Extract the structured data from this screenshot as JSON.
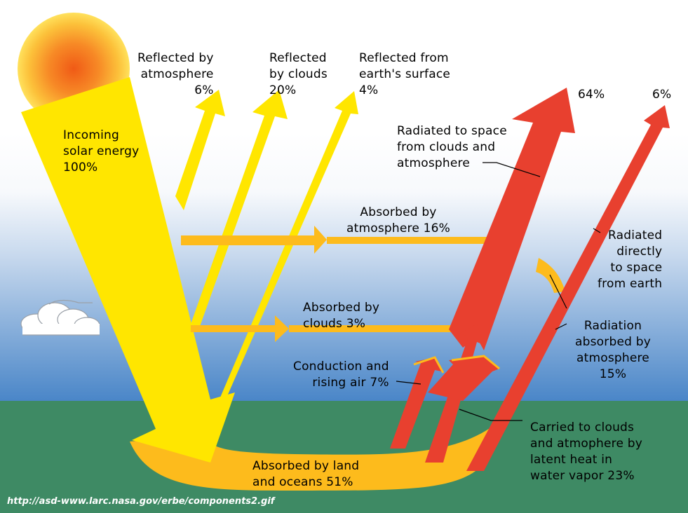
{
  "colors": {
    "sky_top": "#ffffff",
    "sky_bottom": "#4a86c8",
    "ground": "#3e8a64",
    "solar": "#ffe600",
    "absorbed": "#fdbb1c",
    "radiated": "#e8402f",
    "sun_core": "#f26a1a",
    "sun_edge": "#ffd54a"
  },
  "labels": {
    "incoming": "Incoming\nsolar energy\n100%",
    "reflected_atmosphere": "Reflected by\natmosphere\n6%",
    "reflected_clouds": "Reflected\nby clouds\n20%",
    "reflected_surface": "Reflected from\nearth's surface\n4%",
    "top_64": "64%",
    "top_6": "6%",
    "radiated_clouds": "Radiated to space\nfrom clouds and\natmosphere",
    "absorbed_atmosphere": "Absorbed by\natmosphere 16%",
    "radiated_directly": "Radiated\ndirectly\nto space\nfrom earth",
    "absorbed_clouds": "Absorbed by\nclouds 3%",
    "radiation_absorbed": "Radiation\nabsorbed by\natmosphere\n15%",
    "conduction": "Conduction and\nrising air 7%",
    "carried": "Carried to clouds\nand atmophere by\nlatent heat in\nwater vapor 23%",
    "absorbed_land": "Absorbed by land\nand oceans 51%"
  },
  "source_url": "http://asd-www.larc.nasa.gov/erbe/components2.gif"
}
